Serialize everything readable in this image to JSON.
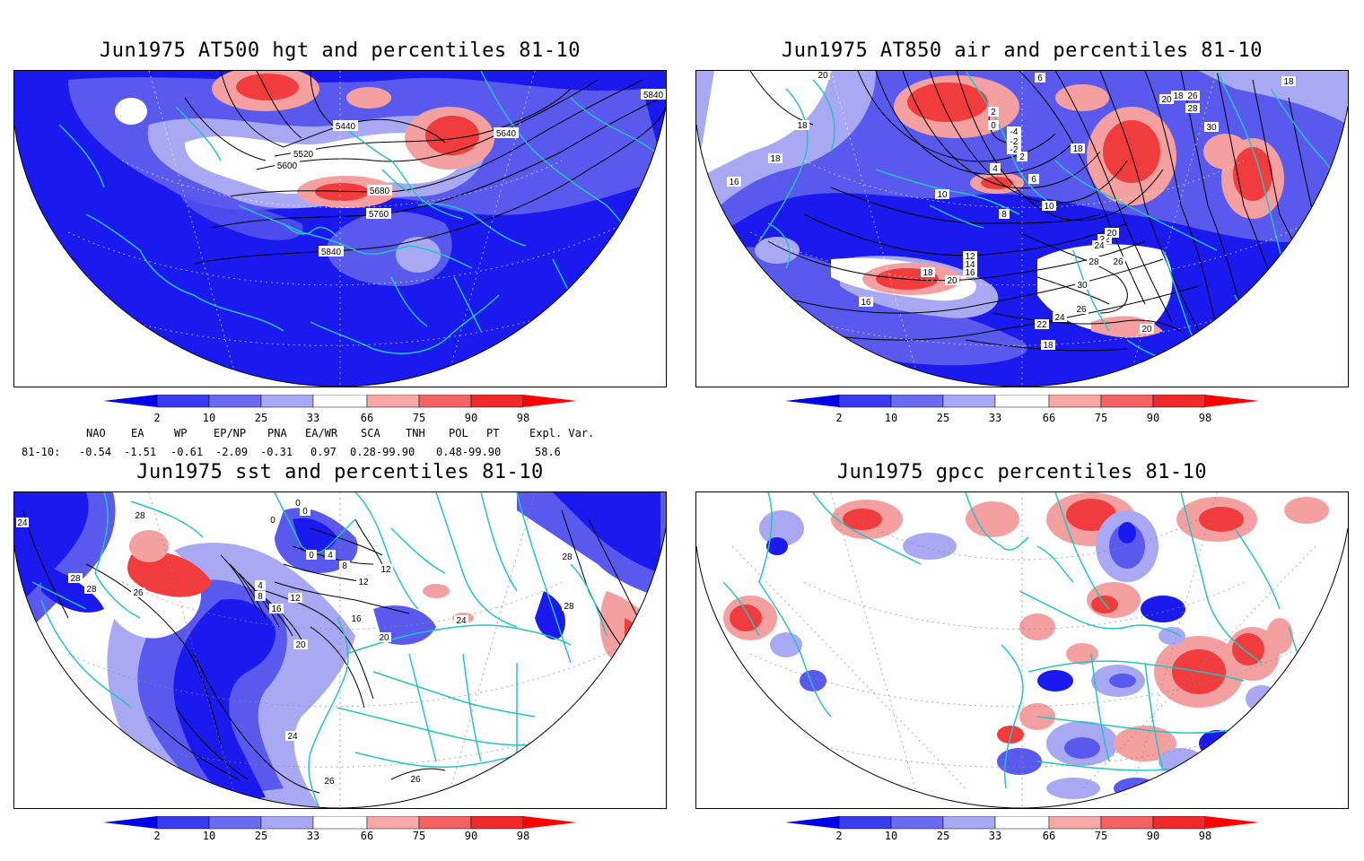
{
  "panels": [
    {
      "title": "Jun1975 AT500 hgt and percentiles 81-10",
      "contour_labels": [
        "5840",
        "5440",
        "5520",
        "5600",
        "5640",
        "5680",
        "5760",
        "5840"
      ]
    },
    {
      "title": "Jun1975 AT850 air and percentiles 81-10",
      "contour_labels": [
        "20",
        "6",
        "18",
        "26",
        "18",
        "18",
        "28",
        "2",
        "0",
        "-4",
        "-2",
        "20",
        "30",
        "-2",
        "2",
        "18",
        "4",
        "6",
        "18",
        "10",
        "16",
        "8",
        "10",
        "12",
        "14",
        "16",
        "18",
        "22",
        "24",
        "20",
        "28",
        "26",
        "20",
        "30",
        "16",
        "26",
        "24",
        "22",
        "20",
        "18"
      ]
    },
    {
      "title": "Jun1975 sst and percentiles 81-10",
      "contour_labels": [
        "24",
        "28",
        "0",
        "0",
        "0",
        "28",
        "28",
        "26",
        "4",
        "8",
        "12",
        "16",
        "0",
        "4",
        "8",
        "12",
        "12",
        "16",
        "20",
        "24",
        "28",
        "20",
        "24",
        "26",
        "26",
        "28"
      ]
    },
    {
      "title": "Jun1975 gpcc percentiles 81-10",
      "contour_labels": []
    }
  ],
  "colorbar": {
    "labels": [
      "2",
      "10",
      "25",
      "33",
      "66",
      "75",
      "90",
      "98"
    ],
    "colors": [
      "#0000e6",
      "#3a3aee",
      "#6b6bf2",
      "#a8a8f5",
      "#ffffff",
      "#f9a8a8",
      "#f56262",
      "#f02a2a",
      "#ff0000"
    ]
  },
  "indices": {
    "headers": [
      "NAO",
      "EA",
      "WP",
      "EP/NP",
      "PNA",
      "EA/WR",
      "SCA",
      "TNH",
      "POL",
      "PT",
      "Expl. Var."
    ],
    "row_label": "81-10:",
    "values": [
      "-0.54",
      "-1.51",
      "-0.61",
      "-2.09",
      "-0.31",
      "0.97",
      "0.28-99.90",
      "0.48-99.90",
      "58.6"
    ]
  },
  "colors": {
    "coast": "#22c4c4",
    "deep_blue": "#1a1aee",
    "mid_blue": "#5959ee",
    "light_blue": "#a9a9f3",
    "red": "#f03c3c",
    "pink": "#f5a0a0"
  }
}
